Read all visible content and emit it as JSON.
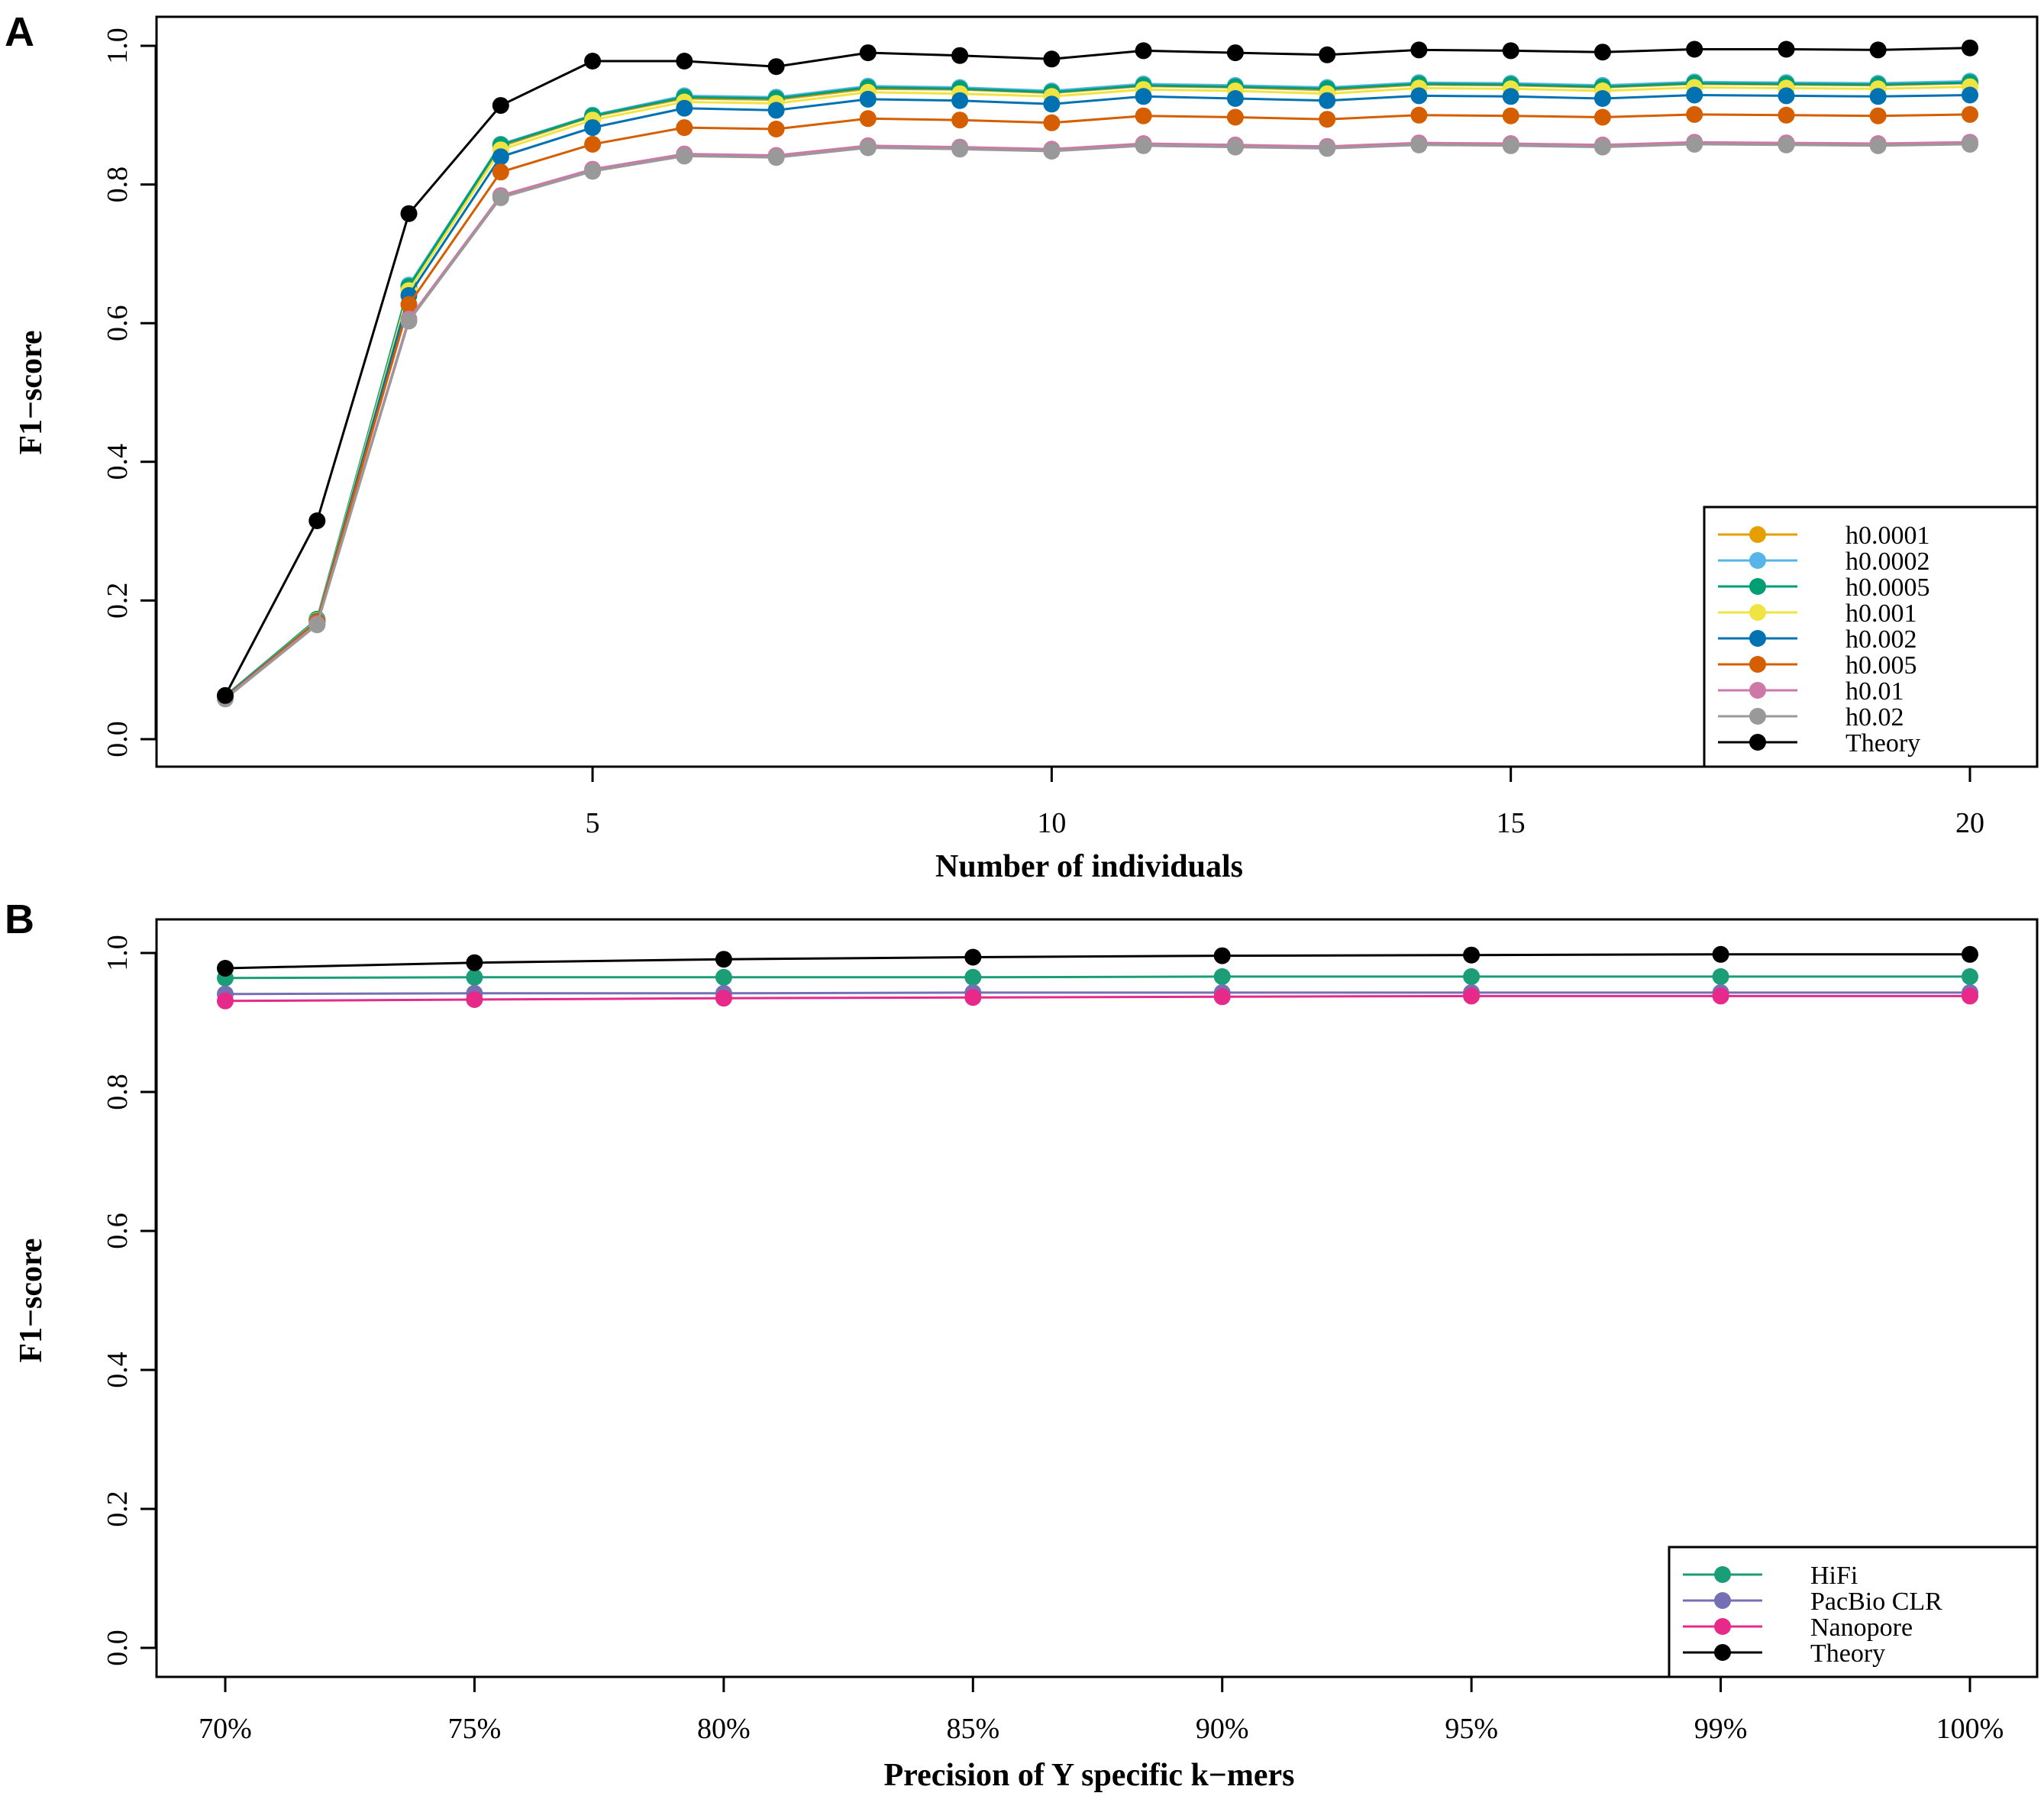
{
  "chart_data": [
    {
      "panel": "A",
      "type": "line",
      "title": "",
      "xlabel": "Number of individuals",
      "ylabel": "F1−score",
      "xlim": [
        1,
        20
      ],
      "ylim": [
        0.0,
        1.0
      ],
      "xticks": [
        5,
        10,
        15,
        20
      ],
      "yticks": [
        0.0,
        0.2,
        0.4,
        0.6,
        0.8,
        1.0
      ],
      "ytick_labels": [
        "0.0",
        "0.2",
        "0.4",
        "0.6",
        "0.8",
        "1.0"
      ],
      "grid": false,
      "legend": "bottom-right",
      "x": [
        1,
        2,
        3,
        4,
        5,
        6,
        7,
        8,
        9,
        10,
        11,
        12,
        13,
        14,
        15,
        16,
        17,
        18,
        19,
        20
      ],
      "series": [
        {
          "name": "h0.0001",
          "color": "#E69F00",
          "values": [
            0.062,
            0.172,
            0.65,
            0.855,
            0.898,
            0.924,
            0.922,
            0.938,
            0.937,
            0.932,
            0.942,
            0.94,
            0.936,
            0.944,
            0.943,
            0.94,
            0.945,
            0.944,
            0.943,
            0.946
          ]
        },
        {
          "name": "h0.0002",
          "color": "#56B4E9",
          "values": [
            0.062,
            0.173,
            0.655,
            0.858,
            0.9,
            0.928,
            0.926,
            0.942,
            0.94,
            0.935,
            0.945,
            0.943,
            0.94,
            0.947,
            0.946,
            0.943,
            0.948,
            0.947,
            0.946,
            0.949
          ]
        },
        {
          "name": "h0.0005",
          "color": "#009E73",
          "values": [
            0.062,
            0.173,
            0.653,
            0.857,
            0.899,
            0.926,
            0.924,
            0.94,
            0.938,
            0.933,
            0.943,
            0.941,
            0.938,
            0.945,
            0.944,
            0.941,
            0.946,
            0.945,
            0.944,
            0.947
          ]
        },
        {
          "name": "h0.001",
          "color": "#F0E442",
          "values": [
            0.061,
            0.171,
            0.647,
            0.85,
            0.893,
            0.919,
            0.917,
            0.933,
            0.931,
            0.927,
            0.937,
            0.935,
            0.931,
            0.939,
            0.938,
            0.935,
            0.94,
            0.939,
            0.938,
            0.941
          ]
        },
        {
          "name": "h0.002",
          "color": "#0072B2",
          "values": [
            0.061,
            0.17,
            0.64,
            0.84,
            0.882,
            0.91,
            0.907,
            0.923,
            0.921,
            0.916,
            0.927,
            0.924,
            0.921,
            0.928,
            0.927,
            0.924,
            0.929,
            0.928,
            0.927,
            0.929
          ]
        },
        {
          "name": "h0.005",
          "color": "#D55E00",
          "values": [
            0.06,
            0.169,
            0.627,
            0.818,
            0.858,
            0.882,
            0.88,
            0.895,
            0.893,
            0.889,
            0.899,
            0.897,
            0.894,
            0.9,
            0.899,
            0.897,
            0.901,
            0.9,
            0.899,
            0.901
          ]
        },
        {
          "name": "h0.01",
          "color": "#CC79A7",
          "values": [
            0.059,
            0.166,
            0.606,
            0.784,
            0.822,
            0.844,
            0.842,
            0.856,
            0.854,
            0.851,
            0.859,
            0.857,
            0.855,
            0.86,
            0.859,
            0.857,
            0.861,
            0.86,
            0.859,
            0.861
          ]
        },
        {
          "name": "h0.02",
          "color": "#999999",
          "values": [
            0.058,
            0.165,
            0.603,
            0.781,
            0.819,
            0.841,
            0.839,
            0.853,
            0.851,
            0.848,
            0.856,
            0.854,
            0.852,
            0.857,
            0.856,
            0.854,
            0.858,
            0.857,
            0.856,
            0.858
          ]
        },
        {
          "name": "Theory",
          "color": "#000000",
          "values": [
            0.063,
            0.315,
            0.758,
            0.914,
            0.978,
            0.978,
            0.97,
            0.99,
            0.986,
            0.981,
            0.993,
            0.99,
            0.987,
            0.994,
            0.993,
            0.991,
            0.995,
            0.995,
            0.994,
            0.997
          ]
        }
      ]
    },
    {
      "panel": "B",
      "type": "line",
      "title": "",
      "xlabel": "Precision of Y specific k−mers",
      "ylabel": "F1−score",
      "categories": [
        "70%",
        "75%",
        "80%",
        "85%",
        "90%",
        "95%",
        "99%",
        "100%"
      ],
      "ylim": [
        0.0,
        1.0
      ],
      "yticks": [
        0.0,
        0.2,
        0.4,
        0.6,
        0.8,
        1.0
      ],
      "ytick_labels": [
        "0.0",
        "0.2",
        "0.4",
        "0.6",
        "0.8",
        "1.0"
      ],
      "grid": false,
      "legend": "bottom-right",
      "series": [
        {
          "name": "HiFi",
          "color": "#1B9E77",
          "values": [
            0.964,
            0.965,
            0.965,
            0.965,
            0.966,
            0.966,
            0.966,
            0.966
          ]
        },
        {
          "name": "PacBio CLR",
          "color": "#7570B3",
          "values": [
            0.941,
            0.942,
            0.942,
            0.943,
            0.943,
            0.943,
            0.943,
            0.943
          ]
        },
        {
          "name": "Nanopore",
          "color": "#E7298A",
          "values": [
            0.931,
            0.933,
            0.935,
            0.936,
            0.937,
            0.938,
            0.938,
            0.938
          ]
        },
        {
          "name": "Theory",
          "color": "#000000",
          "values": [
            0.978,
            0.986,
            0.991,
            0.994,
            0.996,
            0.997,
            0.998,
            0.998
          ]
        }
      ]
    }
  ]
}
